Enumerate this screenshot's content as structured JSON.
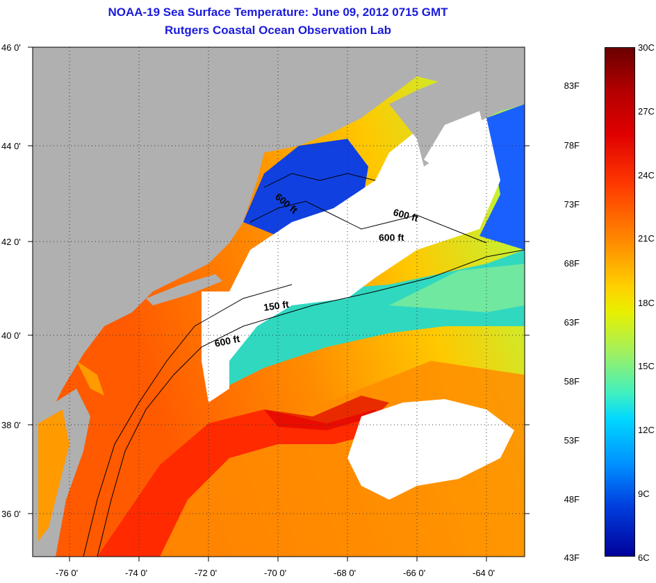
{
  "title": "NOAA-19 Sea Surface Temperature:  June 09, 2012 0715 GMT",
  "subtitle": "Rutgers Coastal Ocean Observation Lab",
  "y_ticks": [
    "46 0'",
    "44 0'",
    "42 0'",
    "40 0'",
    "38 0'",
    "36 0'"
  ],
  "x_ticks": [
    "-76 0'",
    "-74 0'",
    "-72 0'",
    "-70 0'",
    "-68 0'",
    "-66 0'",
    "-64 0'"
  ],
  "contour_labels": [
    "600 ft",
    "600 ft",
    "600 ft",
    "150 ft",
    "600 ft"
  ],
  "colorbar": {
    "celsius": [
      "30C",
      "27C",
      "24C",
      "21C",
      "18C",
      "15C",
      "12C",
      "9C",
      "6C"
    ],
    "fahrenheit": [
      "83F",
      "78F",
      "73F",
      "68F",
      "63F",
      "58F",
      "53F",
      "48F",
      "43F"
    ]
  },
  "colors": {
    "land": "#b0b0b0",
    "cloud": "#ffffff",
    "title": "#1a1adb",
    "warm": "#ff3000",
    "cool": "#0050ff"
  }
}
